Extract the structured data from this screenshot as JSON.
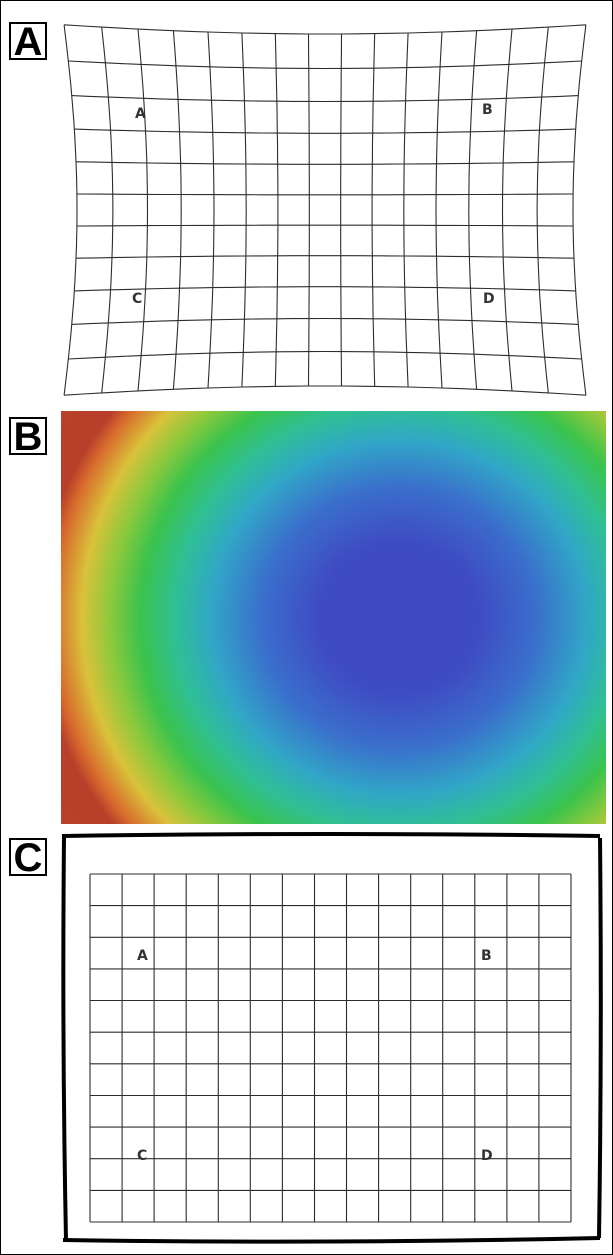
{
  "panels": [
    {
      "letter": "A",
      "corner_labels": [
        "A",
        "B",
        "C",
        "D"
      ]
    },
    {
      "letter": "B"
    },
    {
      "letter": "C",
      "corner_labels": [
        "A",
        "B",
        "C",
        "D"
      ]
    }
  ],
  "colors": {
    "grid": "#2c2c34",
    "label": "#333333",
    "heat_center": "#3f49c1",
    "heat_mid": "#31a6c7",
    "heat_green": "#3bc34c",
    "heat_yellow": "#d9c23a",
    "heat_edge": "#b8402a"
  }
}
